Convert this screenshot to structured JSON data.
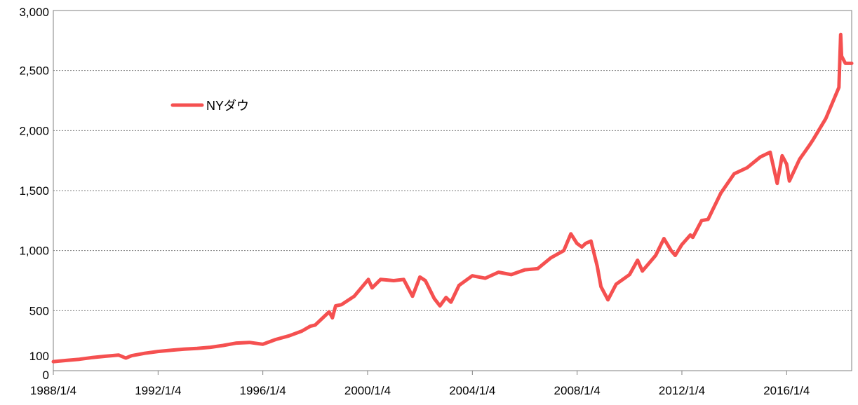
{
  "chart_data": {
    "type": "line",
    "title": "",
    "xlabel": "",
    "ylabel": "",
    "x_start": "1988/1/4",
    "x_end": "2018/6/29",
    "ylim": [
      0,
      3000
    ],
    "y_ticks": [
      0,
      100,
      500,
      1000,
      1500,
      2000,
      2500,
      3000
    ],
    "y_tick_labels": [
      "0",
      "100",
      "500",
      "1,000",
      "1,500",
      "2,000",
      "2,500",
      "3,000"
    ],
    "x_tick_labels": [
      "1988/1/4",
      "1992/1/4",
      "1996/1/4",
      "2000/1/4",
      "2004/1/4",
      "2008/1/4",
      "2012/1/4",
      "2016/1/4"
    ],
    "grid": "horizontal-dotted",
    "legend_position": "top-left",
    "series": [
      {
        "name": "NYダウ",
        "color": "#f55050",
        "x": [
          "1988/1/4",
          "1988/7/1",
          "1989/1/3",
          "1989/7/3",
          "1990/1/2",
          "1990/7/2",
          "1990/10/11",
          "1991/1/2",
          "1991/7/1",
          "1992/1/2",
          "1992/7/1",
          "1993/1/4",
          "1993/7/1",
          "1994/1/3",
          "1994/7/1",
          "1995/1/3",
          "1995/7/3",
          "1996/1/2",
          "1996/7/1",
          "1997/1/2",
          "1997/7/1",
          "1997/10/27",
          "1998/1/2",
          "1998/7/17",
          "1998/8/31",
          "1998/10/15",
          "1999/1/4",
          "1999/7/1",
          "2000/1/14",
          "2000/3/7",
          "2000/7/3",
          "2001/1/2",
          "2001/5/21",
          "2001/9/21",
          "2002/1/2",
          "2002/3/19",
          "2002/7/23",
          "2002/10/9",
          "2003/1/2",
          "2003/3/11",
          "2003/7/1",
          "2004/1/2",
          "2004/7/1",
          "2005/1/3",
          "2005/7/1",
          "2006/1/3",
          "2006/7/3",
          "2007/1/3",
          "2007/7/2",
          "2007/10/9",
          "2008/1/2",
          "2008/3/10",
          "2008/5/1",
          "2008/7/15",
          "2008/10/10",
          "2008/12/1",
          "2009/3/9",
          "2009/7/1",
          "2010/1/4",
          "2010/4/26",
          "2010/7/2",
          "2011/1/3",
          "2011/4/29",
          "2011/8/8",
          "2011/10/3",
          "2012/1/3",
          "2012/5/1",
          "2012/6/4",
          "2012/10/5",
          "2013/1/2",
          "2013/7/1",
          "2014/1/2",
          "2014/7/1",
          "2015/1/2",
          "2015/5/19",
          "2015/8/25",
          "2015/11/2",
          "2016/1/4",
          "2016/2/11",
          "2016/7/1",
          "2016/11/8",
          "2017/1/3",
          "2017/7/3",
          "2018/1/2",
          "2018/1/26",
          "2018/2/8",
          "2018/4/2",
          "2018/6/29"
        ],
        "y": [
          75,
          85,
          95,
          110,
          120,
          130,
          105,
          125,
          145,
          160,
          170,
          180,
          185,
          195,
          210,
          230,
          235,
          220,
          260,
          290,
          330,
          370,
          380,
          490,
          440,
          540,
          550,
          620,
          760,
          690,
          760,
          750,
          760,
          620,
          780,
          750,
          600,
          540,
          610,
          570,
          710,
          790,
          770,
          820,
          800,
          840,
          850,
          940,
          1000,
          1140,
          1060,
          1030,
          1060,
          1080,
          870,
          700,
          590,
          720,
          800,
          920,
          830,
          960,
          1100,
          1000,
          960,
          1050,
          1130,
          1110,
          1250,
          1260,
          1480,
          1640,
          1690,
          1780,
          1820,
          1560,
          1790,
          1720,
          1580,
          1760,
          1870,
          1920,
          2100,
          2360,
          2800,
          2620,
          2560,
          2560
        ]
      }
    ]
  }
}
